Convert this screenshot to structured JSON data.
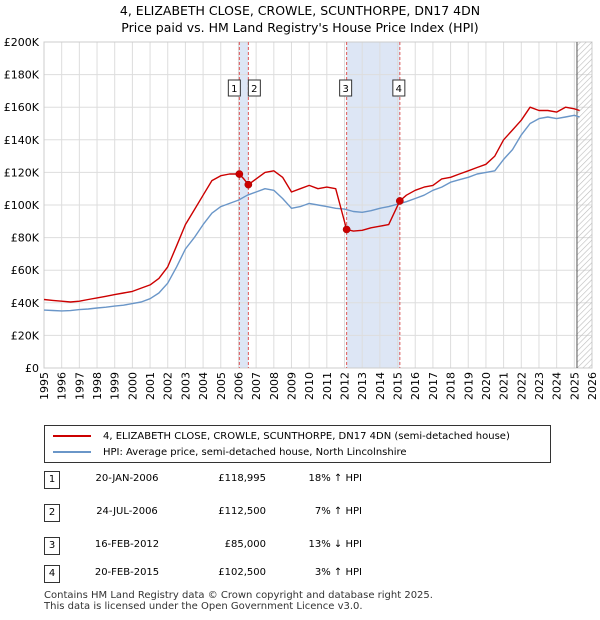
{
  "title": {
    "line1": "4, ELIZABETH CLOSE, CROWLE, SCUNTHORPE, DN17 4DN",
    "line2": "Price paid vs. HM Land Registry's House Price Index (HPI)"
  },
  "legend": {
    "price_label": "4, ELIZABETH CLOSE, CROWLE, SCUNTHORPE, DN17 4DN (semi-detached house)",
    "hpi_label": "HPI: Average price, semi-detached house, North Lincolnshire"
  },
  "transactions": [
    {
      "num": "1",
      "date": "20-JAN-2006",
      "price": "£118,995",
      "hpi": "18% ↑ HPI"
    },
    {
      "num": "2",
      "date": "24-JUL-2006",
      "price": "£112,500",
      "hpi": "7% ↑ HPI"
    },
    {
      "num": "3",
      "date": "16-FEB-2012",
      "price": "£85,000",
      "hpi": "13% ↓ HPI"
    },
    {
      "num": "4",
      "date": "20-FEB-2015",
      "price": "£102,500",
      "hpi": "3% ↑ HPI"
    }
  ],
  "footer": {
    "line1": "Contains HM Land Registry data © Crown copyright and database right 2025.",
    "line2": "This data is licensed under the Open Government Licence v3.0."
  },
  "colors": {
    "price_line": "#cc0000",
    "hpi_line": "#6a96c8",
    "marker_line": "#dd5555",
    "shade": "#dde6f5",
    "grid": "#dddddd"
  },
  "chart_data": {
    "type": "line",
    "title": "Price paid vs. HM Land Registry's House Price Index (HPI)",
    "xlabel": "",
    "ylabel": "",
    "xlim": [
      1995,
      2026
    ],
    "ylim": [
      0,
      200000
    ],
    "y_ticks": [
      0,
      20000,
      40000,
      60000,
      80000,
      100000,
      120000,
      140000,
      160000,
      180000,
      200000
    ],
    "y_tick_labels": [
      "£0",
      "£20K",
      "£40K",
      "£60K",
      "£80K",
      "£100K",
      "£120K",
      "£140K",
      "£160K",
      "£180K",
      "£200K"
    ],
    "x_ticks": [
      1995,
      1996,
      1997,
      1998,
      1999,
      2000,
      2001,
      2002,
      2003,
      2004,
      2005,
      2006,
      2007,
      2008,
      2009,
      2010,
      2011,
      2012,
      2013,
      2014,
      2015,
      2016,
      2017,
      2018,
      2019,
      2020,
      2021,
      2022,
      2023,
      2024,
      2025,
      2026
    ],
    "x_tick_labels": [
      "1995",
      "1996",
      "1997",
      "1998",
      "1999",
      "2000",
      "2001",
      "2002",
      "2003",
      "2004",
      "2005",
      "2006",
      "2007",
      "2008",
      "2009",
      "2010",
      "2011",
      "2012",
      "2013",
      "2014",
      "2015",
      "2016",
      "2017",
      "2018",
      "2019",
      "2020",
      "2021",
      "2022",
      "2023",
      "2024",
      "2025",
      "2026"
    ],
    "shaded_ranges": [
      [
        2006.05,
        2006.56
      ],
      [
        2012.12,
        2015.13
      ]
    ],
    "future_hatch_start": 2025.15,
    "sales": [
      {
        "label": "1",
        "x": 2006.05,
        "y": 118995
      },
      {
        "label": "2",
        "x": 2006.56,
        "y": 112500
      },
      {
        "label": "3",
        "x": 2012.12,
        "y": 85000
      },
      {
        "label": "4",
        "x": 2015.13,
        "y": 102500
      }
    ],
    "series": [
      {
        "name": "4, ELIZABETH CLOSE, CROWLE, SCUNTHORPE, DN17 4DN (semi-detached house)",
        "x": [
          1995,
          1995.5,
          1996,
          1996.5,
          1997,
          1997.5,
          1998,
          1998.5,
          1999,
          1999.5,
          2000,
          2000.5,
          2001,
          2001.5,
          2002,
          2002.5,
          2003,
          2003.5,
          2004,
          2004.5,
          2005,
          2005.5,
          2006.05,
          2006.3,
          2006.56,
          2007,
          2007.5,
          2008,
          2008.5,
          2009,
          2009.5,
          2010,
          2010.5,
          2011,
          2011.5,
          2012.12,
          2012.5,
          2013,
          2013.5,
          2014,
          2014.5,
          2015.13,
          2015.5,
          2016,
          2016.5,
          2017,
          2017.5,
          2018,
          2018.5,
          2019,
          2019.5,
          2020,
          2020.5,
          2021,
          2021.5,
          2022,
          2022.5,
          2023,
          2023.5,
          2024,
          2024.5,
          2025,
          2025.3
        ],
        "y": [
          42000,
          41500,
          41000,
          40500,
          41000,
          42000,
          43000,
          44000,
          45000,
          46000,
          47000,
          49000,
          51000,
          55000,
          62000,
          75000,
          88000,
          97000,
          106000,
          115000,
          118000,
          119000,
          118995,
          116000,
          112500,
          116000,
          120000,
          121000,
          117000,
          108000,
          110000,
          112000,
          110000,
          111000,
          110000,
          85000,
          84000,
          84500,
          86000,
          87000,
          88000,
          102500,
          106000,
          109000,
          111000,
          112000,
          116000,
          117000,
          119000,
          121000,
          123000,
          125000,
          130000,
          140000,
          146000,
          152000,
          160000,
          158000,
          158000,
          157000,
          160000,
          159000,
          158000
        ]
      },
      {
        "name": "HPI: Average price, semi-detached house, North Lincolnshire",
        "x": [
          1995,
          1995.5,
          1996,
          1996.5,
          1997,
          1997.5,
          1998,
          1998.5,
          1999,
          1999.5,
          2000,
          2000.5,
          2001,
          2001.5,
          2002,
          2002.5,
          2003,
          2003.5,
          2004,
          2004.5,
          2005,
          2005.5,
          2006,
          2006.5,
          2007,
          2007.5,
          2008,
          2008.5,
          2009,
          2009.5,
          2010,
          2010.5,
          2011,
          2011.5,
          2012,
          2012.5,
          2013,
          2013.5,
          2014,
          2014.5,
          2015,
          2015.5,
          2016,
          2016.5,
          2017,
          2017.5,
          2018,
          2018.5,
          2019,
          2019.5,
          2020,
          2020.5,
          2021,
          2021.5,
          2022,
          2022.5,
          2023,
          2023.5,
          2024,
          2024.5,
          2025,
          2025.3
        ],
        "y": [
          35500,
          35300,
          35000,
          35200,
          35800,
          36200,
          36800,
          37300,
          38000,
          38500,
          39500,
          40500,
          42500,
          46000,
          52000,
          62000,
          73000,
          80000,
          88000,
          95000,
          99000,
          101000,
          103000,
          106000,
          108000,
          110000,
          109000,
          104000,
          98000,
          99000,
          101000,
          100000,
          99000,
          98000,
          97500,
          96000,
          95500,
          96500,
          98000,
          99000,
          100500,
          102000,
          104000,
          106000,
          109000,
          111000,
          114000,
          115500,
          117000,
          119000,
          120000,
          121000,
          128000,
          134000,
          143000,
          150000,
          153000,
          154000,
          153000,
          154000,
          155000,
          154000
        ]
      }
    ]
  }
}
